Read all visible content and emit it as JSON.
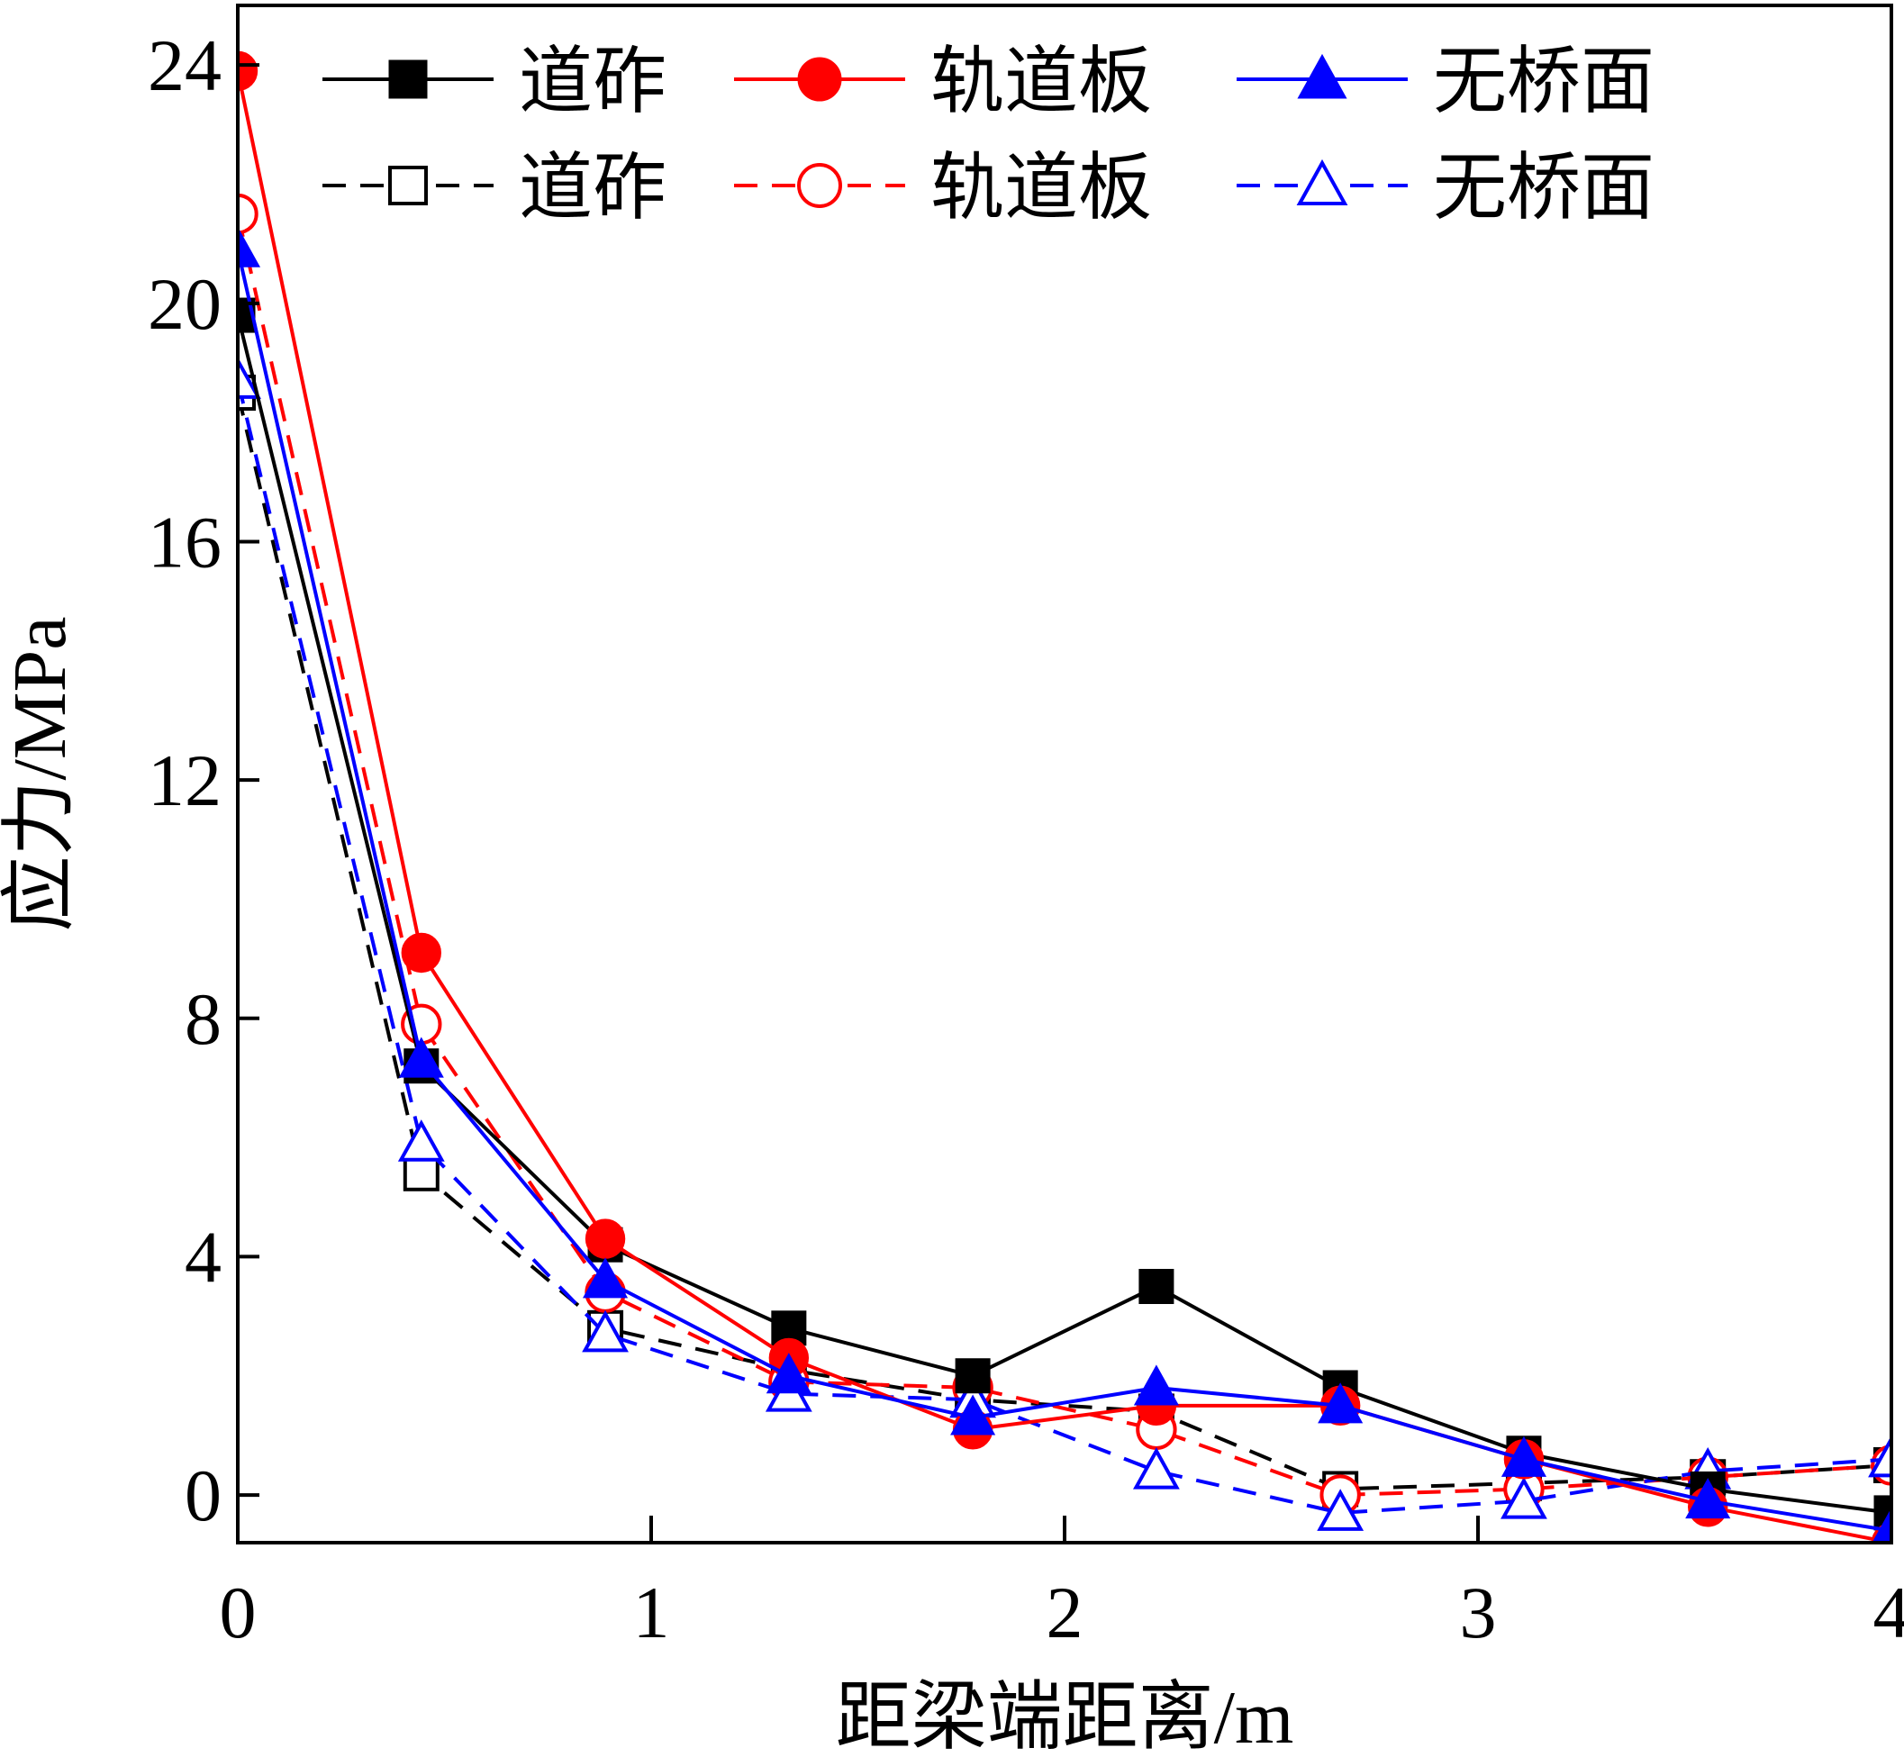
{
  "chart_data": {
    "type": "line",
    "title": "",
    "xlabel": "距梁端距离/m",
    "ylabel": "应力/MPa",
    "xlim": [
      0,
      4
    ],
    "ylim": [
      -0.8,
      25
    ],
    "xticks": [
      0,
      1,
      2,
      3,
      4
    ],
    "yticks": [
      0,
      4,
      8,
      12,
      16,
      20,
      24
    ],
    "grid": false,
    "legend_position": "top",
    "x": [
      0,
      0.444,
      0.889,
      1.333,
      1.778,
      2.222,
      2.667,
      3.111,
      3.556,
      4.0
    ],
    "series": [
      {
        "name": "道砟",
        "color": "#000000",
        "style": "solid",
        "marker": "square",
        "filled": true,
        "values": [
          19.8,
          7.2,
          4.2,
          2.8,
          2.0,
          3.5,
          1.8,
          0.7,
          0.1,
          -0.3
        ]
      },
      {
        "name": "轨道板",
        "color": "#ff0000",
        "style": "solid",
        "marker": "circle",
        "filled": true,
        "values": [
          23.9,
          9.1,
          4.3,
          2.3,
          1.1,
          1.5,
          1.5,
          0.6,
          -0.2,
          -0.8
        ]
      },
      {
        "name": "无桥面",
        "color": "#0000ff",
        "style": "solid",
        "marker": "triangle",
        "filled": true,
        "values": [
          20.9,
          7.3,
          3.6,
          2.0,
          1.3,
          1.8,
          1.5,
          0.6,
          -0.1,
          -0.6
        ]
      },
      {
        "name": "道砟",
        "color": "#000000",
        "style": "dashed",
        "marker": "square",
        "filled": false,
        "values": [
          18.5,
          5.4,
          2.8,
          2.1,
          1.6,
          1.4,
          0.1,
          0.2,
          0.3,
          0.5
        ]
      },
      {
        "name": "轨道板",
        "color": "#ff0000",
        "style": "dashed",
        "marker": "circle",
        "filled": false,
        "values": [
          21.5,
          7.9,
          3.4,
          1.9,
          1.8,
          1.1,
          0.0,
          0.1,
          0.3,
          0.5
        ]
      },
      {
        "name": "无桥面",
        "color": "#0000ff",
        "style": "dashed",
        "marker": "triangle",
        "filled": false,
        "values": [
          18.7,
          5.9,
          2.7,
          1.7,
          1.6,
          0.4,
          -0.3,
          -0.1,
          0.4,
          0.6
        ]
      }
    ]
  }
}
